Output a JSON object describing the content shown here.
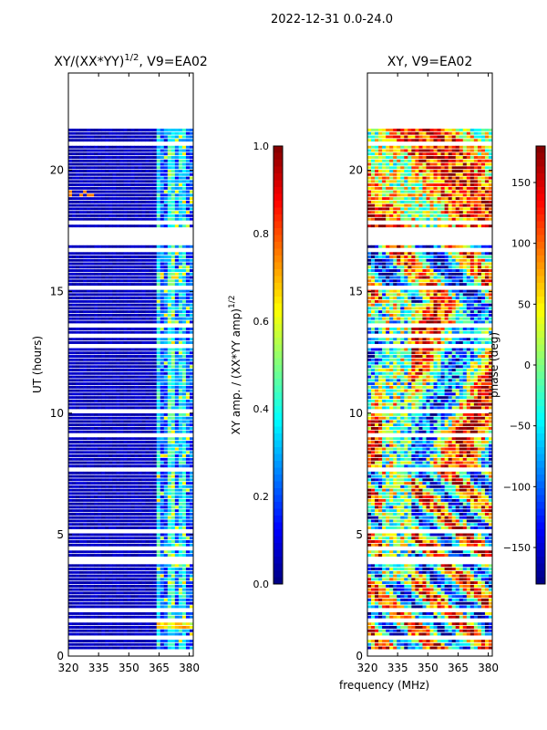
{
  "suptitle": "2022-12-31 0.0-24.0",
  "chart_data": [
    {
      "type": "heatmap",
      "title": "XY/(XX*YY)^(1/2), V9=EA02",
      "title_main": "XY/(XX*YY)",
      "title_sup": "1/2",
      "title_tail": ", V9=EA02",
      "xlabel": "",
      "ylabel": "UT (hours)",
      "xlim": [
        320,
        382
      ],
      "ylim": [
        0,
        24
      ],
      "xticks": [
        320,
        335,
        350,
        365,
        380
      ],
      "yticks": [
        0,
        5,
        10,
        15,
        20
      ],
      "colormap": "jet",
      "colorbar": {
        "label": "XY amp. / (XX*YY amp)^(1/2)",
        "label_main": "XY amp. / (XX*YY amp)",
        "label_sup": "1/2",
        "ticks": [
          "0.0",
          "0.2",
          "0.4",
          "0.6",
          "0.8",
          "1.0"
        ],
        "range": [
          0,
          1
        ]
      }
    },
    {
      "type": "heatmap",
      "title": "XY, V9=EA02",
      "xlabel": "frequency (MHz)",
      "ylabel": "",
      "xlim": [
        320,
        382
      ],
      "ylim": [
        0,
        24
      ],
      "xticks": [
        320,
        335,
        350,
        365,
        380
      ],
      "yticks": [
        0,
        5,
        10,
        15,
        20
      ],
      "colormap": "jet",
      "colorbar": {
        "label": "phase (deg)",
        "ticks": [
          "150",
          "100",
          "50",
          "0",
          "−50",
          "−100",
          "−150"
        ],
        "range": [
          -180,
          180
        ]
      }
    }
  ]
}
